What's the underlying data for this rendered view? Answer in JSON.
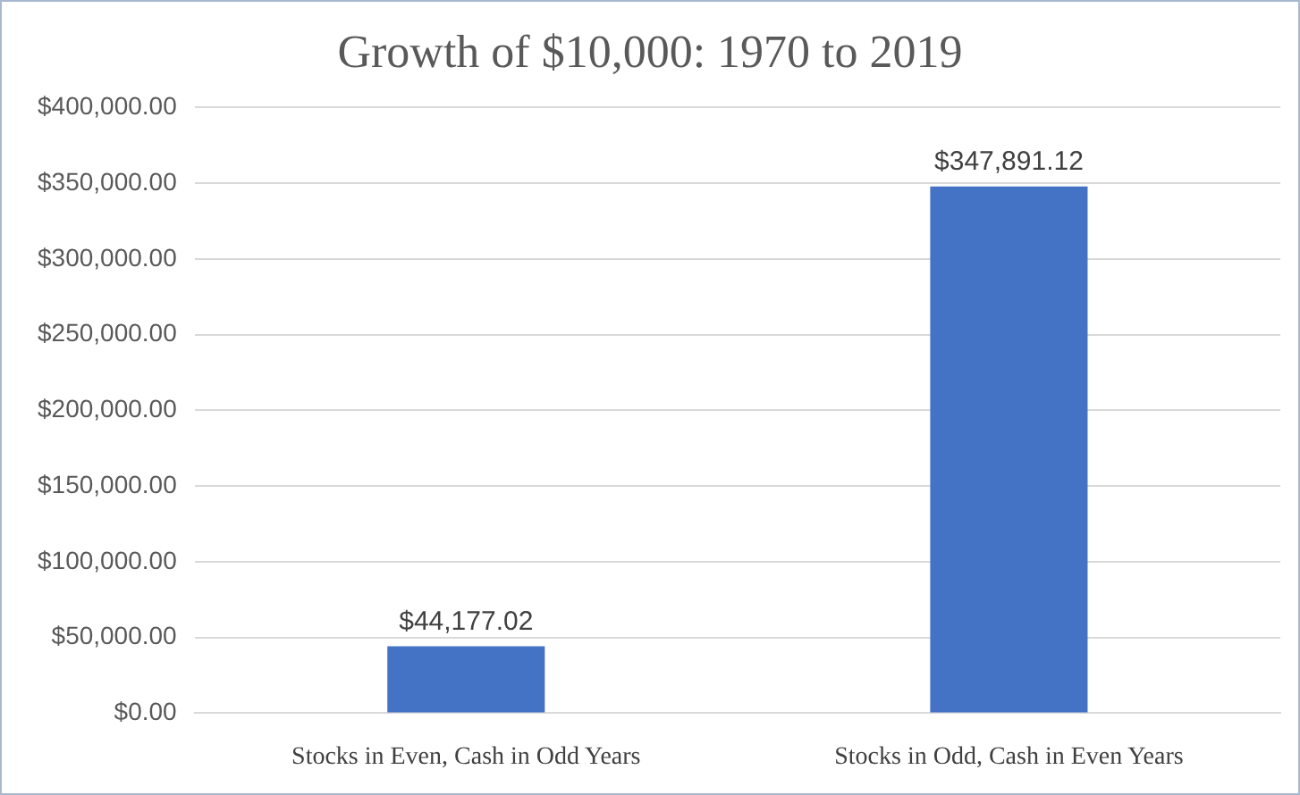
{
  "chart_data": {
    "type": "bar",
    "title": "Growth of $10,000: 1970 to 2019",
    "categories": [
      "Stocks in Even, Cash in Odd Years",
      "Stocks in Odd, Cash in Even Years"
    ],
    "values": [
      44177.02,
      347891.12
    ],
    "color": "#4472c4",
    "value_labels": [
      "$44,177.02",
      "$347,891.12"
    ],
    "ylim": [
      0,
      400000
    ],
    "yticks": [
      {
        "value": 0,
        "label": "$0.00"
      },
      {
        "value": 50000,
        "label": "$50,000.00"
      },
      {
        "value": 100000,
        "label": "$100,000.00"
      },
      {
        "value": 150000,
        "label": "$150,000.00"
      },
      {
        "value": 200000,
        "label": "$200,000.00"
      },
      {
        "value": 250000,
        "label": "$250,000.00"
      },
      {
        "value": 300000,
        "label": "$300,000.00"
      },
      {
        "value": 350000,
        "label": "$350,000.00"
      },
      {
        "value": 400000,
        "label": "$400,000.00"
      }
    ],
    "grid": "y"
  }
}
